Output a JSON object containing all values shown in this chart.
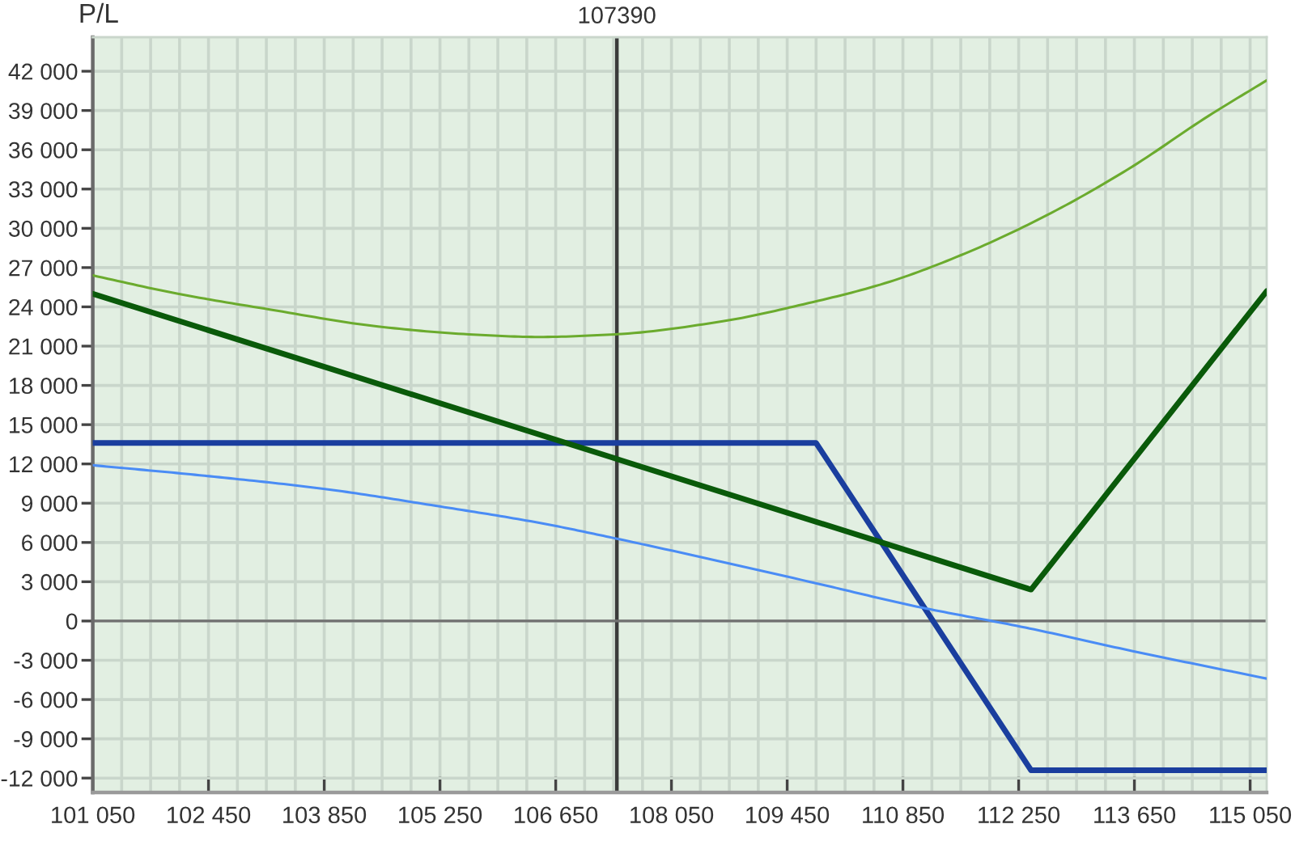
{
  "chart_data": {
    "type": "line",
    "ylabel": "P/L",
    "xlim": [
      101050,
      115250
    ],
    "ylim": [
      -13100,
      44600
    ],
    "xticks": [
      {
        "value": 101050,
        "label": "101 050"
      },
      {
        "value": 101400,
        "label": null
      },
      {
        "value": 101750,
        "label": null
      },
      {
        "value": 102100,
        "label": null
      },
      {
        "value": 102450,
        "label": "102 450"
      },
      {
        "value": 102800,
        "label": null
      },
      {
        "value": 103150,
        "label": null
      },
      {
        "value": 103500,
        "label": null
      },
      {
        "value": 103850,
        "label": "103 850"
      },
      {
        "value": 104200,
        "label": null
      },
      {
        "value": 104550,
        "label": null
      },
      {
        "value": 104900,
        "label": null
      },
      {
        "value": 105250,
        "label": "105 250"
      },
      {
        "value": 105600,
        "label": null
      },
      {
        "value": 105950,
        "label": null
      },
      {
        "value": 106300,
        "label": null
      },
      {
        "value": 106650,
        "label": "106 650"
      },
      {
        "value": 107000,
        "label": null
      },
      {
        "value": 107350,
        "label": null
      },
      {
        "value": 107700,
        "label": null
      },
      {
        "value": 108050,
        "label": "108 050"
      },
      {
        "value": 108400,
        "label": null
      },
      {
        "value": 108750,
        "label": null
      },
      {
        "value": 109100,
        "label": null
      },
      {
        "value": 109450,
        "label": "109 450"
      },
      {
        "value": 109800,
        "label": null
      },
      {
        "value": 110150,
        "label": null
      },
      {
        "value": 110500,
        "label": null
      },
      {
        "value": 110850,
        "label": "110 850"
      },
      {
        "value": 111200,
        "label": null
      },
      {
        "value": 111550,
        "label": null
      },
      {
        "value": 111900,
        "label": null
      },
      {
        "value": 112250,
        "label": "112 250"
      },
      {
        "value": 112600,
        "label": null
      },
      {
        "value": 112950,
        "label": null
      },
      {
        "value": 113300,
        "label": null
      },
      {
        "value": 113650,
        "label": "113 650"
      },
      {
        "value": 114000,
        "label": null
      },
      {
        "value": 114350,
        "label": null
      },
      {
        "value": 114700,
        "label": null
      },
      {
        "value": 115050,
        "label": "115 050"
      }
    ],
    "yticks": [
      {
        "value": -12000,
        "label": "-12 000"
      },
      {
        "value": -9000,
        "label": "-9 000"
      },
      {
        "value": -6000,
        "label": "-6 000"
      },
      {
        "value": -3000,
        "label": "-3 000"
      },
      0,
      {
        "value": 3000,
        "label": "3 000"
      },
      {
        "value": 6000,
        "label": "6 000"
      },
      {
        "value": 9000,
        "label": "9 000"
      },
      {
        "value": 12000,
        "label": "12 000"
      },
      {
        "value": 15000,
        "label": "15 000"
      },
      {
        "value": 18000,
        "label": "18 000"
      },
      {
        "value": 21000,
        "label": "21 000"
      },
      {
        "value": 24000,
        "label": "24 000"
      },
      {
        "value": 27000,
        "label": "27 000"
      },
      {
        "value": 30000,
        "label": "30 000"
      },
      {
        "value": 33000,
        "label": "33 000"
      },
      {
        "value": 36000,
        "label": "36 000"
      },
      {
        "value": 39000,
        "label": "39 000"
      },
      {
        "value": 42000,
        "label": "42 000"
      }
    ],
    "grid": true,
    "ref_lines": [
      {
        "axis": "x",
        "value": 107390,
        "label": "107390",
        "color": "#3a3a3a"
      },
      {
        "axis": "y",
        "value": 0,
        "color": "#707070"
      }
    ],
    "series": [
      {
        "color": "#1a3e9e",
        "x": [
          101050,
          109800,
          112400,
          115250
        ],
        "values": [
          13600,
          13600,
          -11400,
          -11400
        ]
      },
      {
        "color": "#0a5a0a",
        "x": [
          101050,
          112400,
          115250
        ],
        "values": [
          25000,
          2400,
          25200
        ]
      },
      {
        "color": "#6bab2e",
        "x": [
          101050,
          102080,
          103190,
          104500,
          105600,
          106450,
          107370,
          108670,
          109650,
          110630,
          111610,
          112590,
          113570,
          114550,
          115250
        ],
        "values": [
          26400,
          25000,
          23800,
          22500,
          21900,
          21700,
          21900,
          22900,
          24200,
          25800,
          28100,
          31000,
          34500,
          38600,
          41300
        ]
      },
      {
        "color": "#4a8cf5",
        "x": [
          101050,
          102400,
          103840,
          105200,
          106450,
          107380,
          109720,
          111020,
          112330,
          113630,
          115250
        ],
        "values": [
          11900,
          11100,
          10100,
          8800,
          7500,
          6300,
          3000,
          1100,
          -500,
          -2300,
          -4400
        ]
      }
    ]
  }
}
